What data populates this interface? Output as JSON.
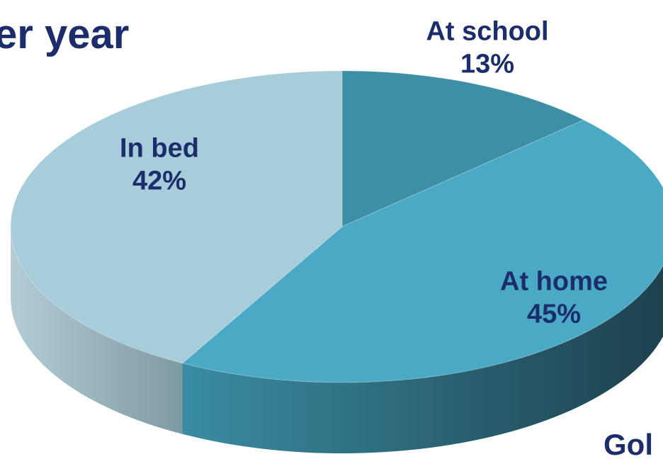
{
  "chart_data": {
    "type": "pie",
    "title": "er year",
    "categories": [
      "At school",
      "At home",
      "In bed"
    ],
    "values": [
      13,
      45,
      42
    ],
    "value_labels": [
      "13%",
      "45%",
      "42%"
    ],
    "colors": [
      "#3e8ea5",
      "#4aa9c5",
      "#a7ccda"
    ],
    "footer": "Gol"
  }
}
